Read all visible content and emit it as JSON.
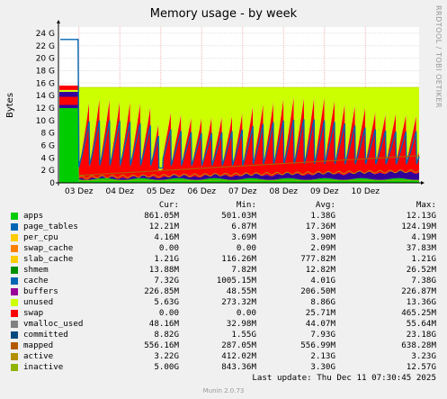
{
  "title": "Memory usage - by week",
  "side_label": "RRDTOOL / TOBI OETIKER",
  "chart_data": {
    "type": "area",
    "title": "Memory usage - by week",
    "ylabel": "Bytes",
    "xlabel": "",
    "ylim": [
      0,
      25
    ],
    "y_unit": "G",
    "y_ticks": [
      0,
      2,
      4,
      6,
      8,
      10,
      12,
      14,
      16,
      18,
      20,
      22,
      24
    ],
    "y_tick_labels": [
      "0",
      "2 G",
      "4 G",
      "6 G",
      "8 G",
      "10 G",
      "12 G",
      "14 G",
      "16 G",
      "18 G",
      "20 G",
      "22 G",
      "24 G"
    ],
    "x_range": [
      "02 Dez 12:00",
      "11 Dez 07:30"
    ],
    "x_ticks": [
      "03 Dez",
      "04 Dez",
      "05 Dez",
      "06 Dez",
      "07 Dez",
      "08 Dez",
      "09 Dez",
      "10 Dez"
    ],
    "grid": true,
    "legend_placement": "bottom",
    "notes": {
      "stack_before_restart_G": {
        "apps": 12.0,
        "page_tables": 0.12,
        "slab_cache": 0.5,
        "cache": 1.3,
        "buffers": 0.2,
        "swap_top": 15.6
      },
      "restart": "03 Dez 00:00",
      "committed_before_restart_G": 23.0,
      "unused_top_G": 15.3,
      "cache_cycle": "daily growth from ~1.5 G to ~11 G, roughly 4 cycles per day",
      "dip": "05 Dez 00:00"
    },
    "series": [
      {
        "name": "apps",
        "color": "#00cc00",
        "cur": "861.05M",
        "min": "501.03M",
        "avg": "1.38G",
        "max": "12.13G"
      },
      {
        "name": "page_tables",
        "color": "#0066b3",
        "cur": "12.21M",
        "min": "6.87M",
        "avg": "17.36M",
        "max": "124.19M"
      },
      {
        "name": "per_cpu",
        "color": "#ff8000",
        "cur": "4.16M",
        "min": "3.69M",
        "avg": "3.90M",
        "max": "4.19M"
      },
      {
        "name": "swap_cache",
        "color": "#ffcc00",
        "cur": "0.00",
        "min": "0.00",
        "avg": "2.09M",
        "max": "37.83M"
      },
      {
        "name": "slab_cache",
        "color": "#330099",
        "cur": "1.21G",
        "min": "116.26M",
        "avg": "777.82M",
        "max": "1.21G"
      },
      {
        "name": "shmem",
        "color": "#990099",
        "cur": "13.88M",
        "min": "7.82M",
        "avg": "12.82M",
        "max": "26.52M"
      },
      {
        "name": "cache",
        "color": "#ccff00",
        "cur": "7.32G",
        "min": "1005.15M",
        "avg": "4.01G",
        "max": "7.38G"
      },
      {
        "name": "buffers",
        "color": "#ff0000",
        "cur": "226.85M",
        "min": "48.55M",
        "avg": "206.50M",
        "max": "226.87M"
      },
      {
        "name": "unused",
        "color": "#808080",
        "cur": "5.63G",
        "min": "273.32M",
        "avg": "8.86G",
        "max": "13.36G"
      },
      {
        "name": "swap",
        "color": "#008f00",
        "cur": "0.00",
        "min": "0.00",
        "avg": "25.71M",
        "max": "465.25M"
      },
      {
        "name": "vmalloc_used",
        "color": "#00487d",
        "cur": "48.16M",
        "min": "32.98M",
        "avg": "44.07M",
        "max": "55.64M"
      },
      {
        "name": "committed",
        "color": "#b35a00",
        "cur": "8.82G",
        "min": "1.55G",
        "avg": "7.93G",
        "max": "23.18G"
      },
      {
        "name": "mapped",
        "color": "#b38f00",
        "cur": "556.16M",
        "min": "287.05M",
        "avg": "556.99M",
        "max": "638.28M"
      },
      {
        "name": "active",
        "color": "#6b006b",
        "cur": "3.22G",
        "min": "412.02M",
        "avg": "2.13G",
        "max": "3.23G"
      },
      {
        "name": "inactive",
        "color": "#8fb300",
        "cur": "5.00G",
        "min": "843.36M",
        "avg": "3.30G",
        "max": "12.57G"
      }
    ]
  },
  "legend": {
    "header": {
      "cur": "Cur:",
      "min": "Min:",
      "avg": "Avg:",
      "max": "Max:"
    },
    "display_colors": [
      "#00cc00",
      "#0066b3",
      "#ffcc00",
      "#ff8000",
      "#ffcc00",
      "#008f00",
      "#0066b3",
      "#990099",
      "#ccff00",
      "#ff0000",
      "#808080",
      "#00487d",
      "#b35a00",
      "#b38f00",
      "#8fb300"
    ]
  },
  "last_update": "Last update: Thu Dec 11 07:30:45 2025",
  "footer": "Munin 2.0.73"
}
